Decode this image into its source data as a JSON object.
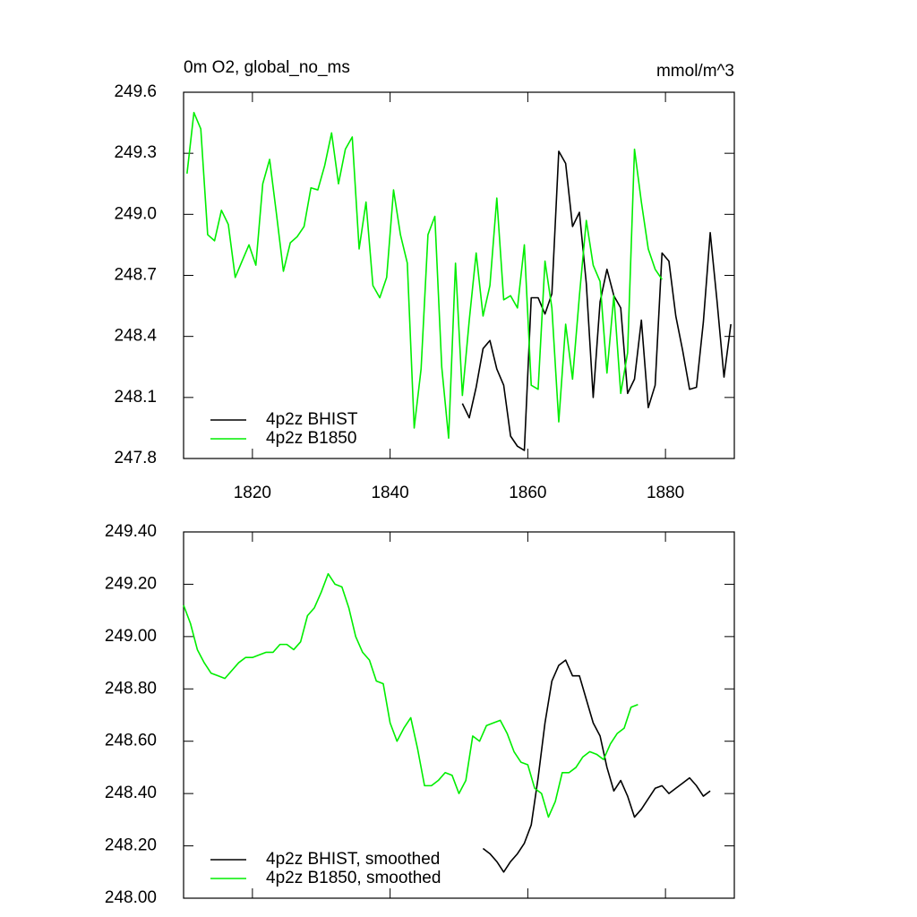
{
  "chart_data": [
    {
      "type": "line",
      "title": "0m O2, global_no_ms",
      "units": "mmol/m^3",
      "xlim": [
        1810,
        1890
      ],
      "xticks": [
        1820,
        1840,
        1860,
        1880
      ],
      "show_xtick_labels": true,
      "ylim": [
        247.8,
        249.6
      ],
      "yticks": [
        247.8,
        {
          "value": 248.1,
          "label": "248.1"
        },
        248.4,
        248.7,
        {
          "value": 249,
          "label": "249.0"
        },
        249.3,
        249.6
      ],
      "legend": "lower left",
      "series": [
        {
          "name": "4p2z BHIST",
          "color": "#000000",
          "x": [
            1850.5,
            1851.5,
            1852.5,
            1853.5,
            1854.5,
            1855.5,
            1856.5,
            1857.5,
            1858.5,
            1859.5,
            1860.5,
            1861.5,
            1862.5,
            1863.5,
            1864.5,
            1865.5,
            1866.5,
            1867.5,
            1868.5,
            1869.5,
            1870.5,
            1871.5,
            1872.5,
            1873.5,
            1874.5,
            1875.5,
            1876.5,
            1877.5,
            1878.5,
            1879.5,
            1880.5,
            1881.5,
            1882.5,
            1883.5,
            1884.5,
            1885.5,
            1886.5,
            1887.5,
            1888.5,
            1889.5
          ],
          "values": [
            248.07,
            248.0,
            248.15,
            248.34,
            248.38,
            248.24,
            248.16,
            247.91,
            247.86,
            247.84,
            248.59,
            248.59,
            248.51,
            248.61,
            249.31,
            249.25,
            248.94,
            249.01,
            248.66,
            248.1,
            248.57,
            248.73,
            248.6,
            248.54,
            248.12,
            248.19,
            248.48,
            248.05,
            248.16,
            248.81,
            248.77,
            248.5,
            248.33,
            248.14,
            248.15,
            248.47,
            248.91,
            248.57,
            248.2,
            248.46
          ]
        },
        {
          "name": "4p2z B1850",
          "color": "#00ee00",
          "x": [
            1810.5,
            1811.5,
            1812.5,
            1813.5,
            1814.5,
            1815.5,
            1816.5,
            1817.5,
            1818.5,
            1819.5,
            1820.5,
            1821.5,
            1822.5,
            1823.5,
            1824.5,
            1825.5,
            1826.5,
            1827.5,
            1828.5,
            1829.5,
            1830.5,
            1831.5,
            1832.5,
            1833.5,
            1834.5,
            1835.5,
            1836.5,
            1837.5,
            1838.5,
            1839.5,
            1840.5,
            1841.5,
            1842.5,
            1843.5,
            1844.5,
            1845.5,
            1846.5,
            1847.5,
            1848.5,
            1849.5,
            1850.5,
            1851.5,
            1852.5,
            1853.5,
            1854.5,
            1855.5,
            1856.5,
            1857.5,
            1858.5,
            1859.5,
            1860.5,
            1861.5,
            1862.5,
            1863.5,
            1864.5,
            1865.5,
            1866.5,
            1867.5,
            1868.5,
            1869.5,
            1870.5,
            1871.5,
            1872.5,
            1873.5,
            1874.5,
            1875.5,
            1876.5,
            1877.5,
            1878.5,
            1879.5
          ],
          "values": [
            249.2,
            249.5,
            249.42,
            248.9,
            248.87,
            249.02,
            248.95,
            248.69,
            248.77,
            248.85,
            248.75,
            249.15,
            249.27,
            249.0,
            248.72,
            248.86,
            248.89,
            248.94,
            249.13,
            249.12,
            249.24,
            249.4,
            249.15,
            249.32,
            249.38,
            248.83,
            249.06,
            248.65,
            248.59,
            248.69,
            249.12,
            248.9,
            248.76,
            247.95,
            248.24,
            248.9,
            248.99,
            248.25,
            247.9,
            248.76,
            248.11,
            248.48,
            248.81,
            248.5,
            248.65,
            249.08,
            248.58,
            248.6,
            248.54,
            248.85,
            248.16,
            248.14,
            248.77,
            248.54,
            247.98,
            248.46,
            248.19,
            248.6,
            248.97,
            248.75,
            248.67,
            248.22,
            248.6,
            248.12,
            248.32,
            249.32,
            249.06,
            248.83,
            248.73,
            248.68
          ]
        }
      ]
    },
    {
      "type": "line",
      "xlim": [
        1810,
        1890
      ],
      "xticks": [
        1820,
        1840,
        1860,
        1880
      ],
      "show_xtick_labels": false,
      "ylim": [
        248,
        249.4
      ],
      "yticks": [
        {
          "value": 248,
          "label": "248.00"
        },
        {
          "value": 248.2,
          "label": "248.20"
        },
        {
          "value": 248.4,
          "label": "248.40"
        },
        {
          "value": 248.6,
          "label": "248.60"
        },
        {
          "value": 248.8,
          "label": "248.80"
        },
        {
          "value": 249,
          "label": "249.00"
        },
        {
          "value": 249.2,
          "label": "249.20"
        },
        {
          "value": 249.4,
          "label": "249.40"
        }
      ],
      "legend": "lower left",
      "series": [
        {
          "name": "4p2z BHIST, smoothed",
          "color": "#000000",
          "x": [
            1853.5,
            1854.5,
            1855.5,
            1856.5,
            1857.5,
            1858.5,
            1859.5,
            1860.5,
            1861.5,
            1862.5,
            1863.5,
            1864.5,
            1865.5,
            1866.5,
            1867.5,
            1868.5,
            1869.5,
            1870.5,
            1871.5,
            1872.5,
            1873.5,
            1874.5,
            1875.5,
            1876.5,
            1877.5,
            1878.5,
            1879.5,
            1880.5,
            1881.5,
            1882.5,
            1883.5,
            1884.5,
            1885.5,
            1886.5
          ],
          "values": [
            248.19,
            248.17,
            248.14,
            248.1,
            248.14,
            248.17,
            248.21,
            248.28,
            248.46,
            248.67,
            248.83,
            248.89,
            248.91,
            248.85,
            248.85,
            248.76,
            248.67,
            248.62,
            248.5,
            248.41,
            248.45,
            248.39,
            248.31,
            248.34,
            248.38,
            248.42,
            248.43,
            248.4,
            248.42,
            248.44,
            248.46,
            248.43,
            248.39,
            248.41
          ]
        },
        {
          "name": "4p2z B1850, smoothed",
          "color": "#00ee00",
          "x": [
            1810,
            1811,
            1812,
            1813,
            1814,
            1815,
            1816,
            1817,
            1818,
            1819,
            1820,
            1821,
            1822,
            1823,
            1824,
            1825,
            1826,
            1827,
            1828,
            1829,
            1830,
            1831,
            1832,
            1833,
            1834,
            1835,
            1836,
            1837,
            1838,
            1839,
            1840,
            1841,
            1842,
            1843,
            1844,
            1845,
            1846,
            1847,
            1848,
            1849,
            1850,
            1851,
            1852,
            1853,
            1854,
            1855,
            1856,
            1857,
            1858,
            1859,
            1860,
            1861,
            1862,
            1863,
            1864,
            1865,
            1866,
            1867,
            1868,
            1869,
            1870,
            1871,
            1872,
            1873,
            1874,
            1875,
            1876
          ],
          "values": [
            249.12,
            249.05,
            248.95,
            248.9,
            248.86,
            248.85,
            248.84,
            248.87,
            248.9,
            248.92,
            248.92,
            248.93,
            248.94,
            248.94,
            248.97,
            248.97,
            248.95,
            248.98,
            249.08,
            249.11,
            249.17,
            249.24,
            249.2,
            249.19,
            249.11,
            249.0,
            248.94,
            248.91,
            248.83,
            248.82,
            248.67,
            248.6,
            248.65,
            248.69,
            248.57,
            248.43,
            248.43,
            248.45,
            248.48,
            248.47,
            248.4,
            248.45,
            248.62,
            248.6,
            248.66,
            248.67,
            248.68,
            248.63,
            248.56,
            248.52,
            248.51,
            248.42,
            248.4,
            248.31,
            248.37,
            248.48,
            248.48,
            248.5,
            248.54,
            248.56,
            248.55,
            248.53,
            248.59,
            248.63,
            248.65,
            248.73,
            248.74
          ]
        }
      ]
    }
  ]
}
